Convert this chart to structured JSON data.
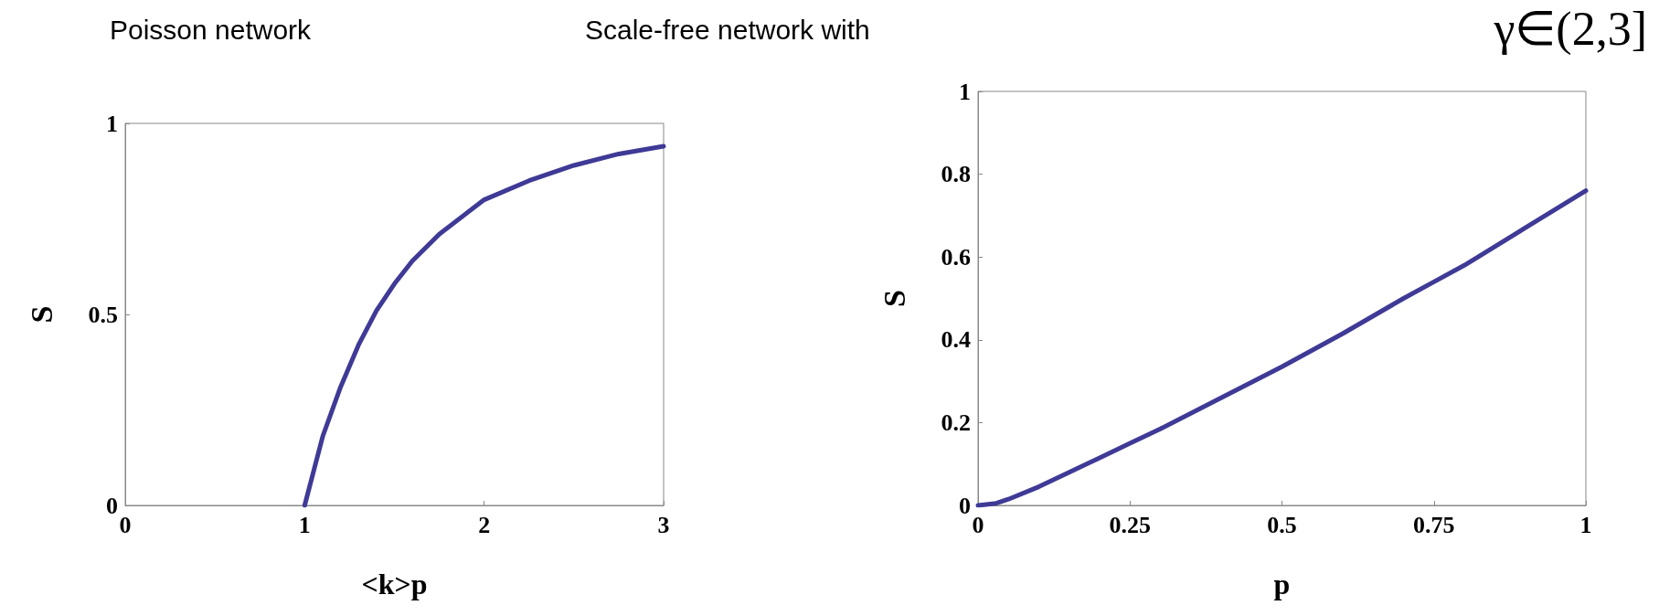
{
  "chart_data": [
    {
      "type": "line",
      "title": "Poisson network",
      "xlabel": "<k>p",
      "ylabel": "S",
      "x": [
        1,
        1.05,
        1.1,
        1.2,
        1.3,
        1.4,
        1.5,
        1.6,
        1.75,
        2,
        2.25,
        2.5,
        2.75,
        3
      ],
      "series": [
        {
          "color": "#3f3a96",
          "values": [
            0,
            0.09,
            0.18,
            0.31,
            0.42,
            0.51,
            0.58,
            0.64,
            0.71,
            0.8,
            0.85,
            0.89,
            0.92,
            0.94
          ]
        }
      ],
      "xlim": [
        0,
        3
      ],
      "xticks": [
        0,
        1,
        2,
        3
      ],
      "ylim": [
        0,
        1
      ],
      "yticks": [
        0,
        0.5,
        1
      ],
      "grid": false,
      "marker": "none",
      "line_style": "solid"
    },
    {
      "type": "line",
      "title": "Scale-free network with",
      "subtitle": "γ∈(2,3]",
      "xlabel": "p",
      "ylabel": "S",
      "x": [
        0,
        0.03,
        0.05,
        0.1,
        0.15,
        0.2,
        0.25,
        0.3,
        0.4,
        0.5,
        0.6,
        0.7,
        0.75,
        0.8,
        0.9,
        1
      ],
      "series": [
        {
          "color": "#3f3a96",
          "values": [
            0,
            0.005,
            0.015,
            0.045,
            0.08,
            0.115,
            0.15,
            0.185,
            0.26,
            0.335,
            0.415,
            0.5,
            0.54,
            0.58,
            0.67,
            0.76
          ]
        }
      ],
      "xlim": [
        0,
        1
      ],
      "xticks": [
        0,
        0.25,
        0.5,
        0.75,
        1
      ],
      "ylim": [
        0,
        1
      ],
      "yticks": [
        0,
        0.2,
        0.4,
        0.6,
        0.8,
        1
      ],
      "grid": false,
      "marker": "none",
      "line_style": "solid"
    }
  ]
}
